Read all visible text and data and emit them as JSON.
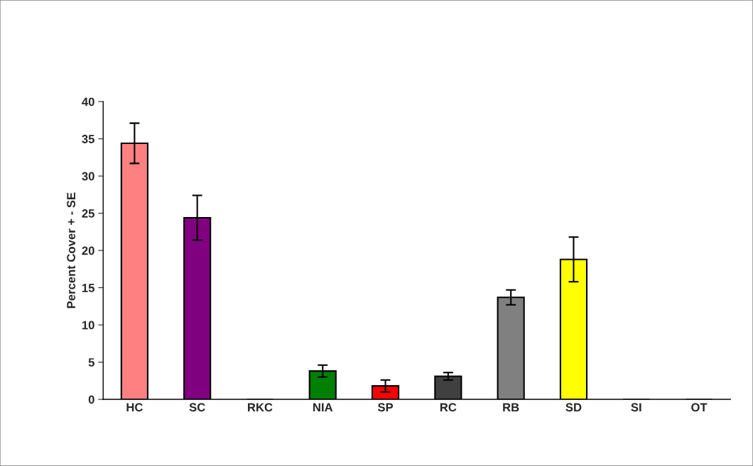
{
  "chart_data": {
    "type": "bar",
    "ylabel": "Percent Cover + - SE",
    "categories": [
      "HC",
      "SC",
      "RKC",
      "NIA",
      "SP",
      "RC",
      "RB",
      "SD",
      "SI",
      "OT"
    ],
    "values": [
      34.4,
      24.4,
      0,
      3.8,
      1.8,
      3.1,
      13.7,
      18.8,
      0,
      0
    ],
    "errors": [
      2.7,
      3.0,
      null,
      0.8,
      0.8,
      0.5,
      1.0,
      3.0,
      null,
      null
    ],
    "colors": [
      "#ff8080",
      "#800080",
      "#000000",
      "#008000",
      "#ff0000",
      "#404040",
      "#808080",
      "#ffff00",
      "#000000",
      "#000000"
    ],
    "ylim": [
      0,
      40
    ],
    "yticks": [
      0,
      5,
      10,
      15,
      20,
      25,
      30,
      35,
      40
    ],
    "grid": false,
    "legend": false
  }
}
